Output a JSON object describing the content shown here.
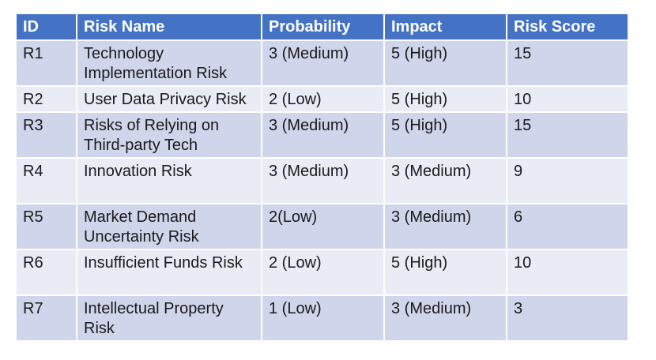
{
  "table": {
    "headers": [
      "ID",
      "Risk Name",
      "Probability",
      "Impact",
      "Risk Score"
    ],
    "rows": [
      {
        "id": "R1",
        "name": "Technology Implementation Risk",
        "probability": "3 (Medium)",
        "impact": "5 (High)",
        "score": "15"
      },
      {
        "id": "R2",
        "name": "User Data Privacy Risk",
        "probability": "2 (Low)",
        "impact": "5 (High)",
        "score": "10"
      },
      {
        "id": "R3",
        "name": "Risks of Relying on Third-party Tech",
        "probability": "3 (Medium)",
        "impact": "5 (High)",
        "score": "15"
      },
      {
        "id": "R4",
        "name": "Innovation Risk",
        "probability": "3 (Medium)",
        "impact": "3 (Medium)",
        "score": "9"
      },
      {
        "id": "R5",
        "name": "Market Demand Uncertainty Risk",
        "probability": "2(Low)",
        "impact": "3 (Medium)",
        "score": "6"
      },
      {
        "id": "R6",
        "name": "Insufficient Funds Risk",
        "probability": "2 (Low)",
        "impact": "5 (High)",
        "score": "10"
      },
      {
        "id": "R7",
        "name": "Intellectual Property Risk",
        "probability": "1 (Low)",
        "impact": "3 (Medium)",
        "score": "3"
      }
    ]
  },
  "colors": {
    "header_bg": "#4472c4",
    "row_odd": "#cfd5ea",
    "row_even": "#e9ebf5"
  }
}
